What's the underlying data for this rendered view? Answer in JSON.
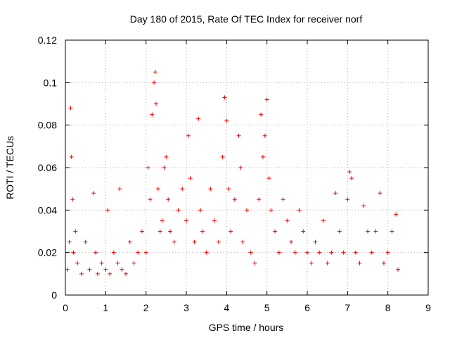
{
  "chart_data": {
    "type": "scatter",
    "title": "Day 180 of 2015, Rate Of TEC Index for receiver norf",
    "xlabel": "GPS time / hours",
    "ylabel": "ROTI / TECUs",
    "xlim": [
      0,
      9
    ],
    "ylim": [
      0,
      0.12
    ],
    "x_ticks": [
      "0",
      "1",
      "2",
      "3",
      "4",
      "5",
      "6",
      "7",
      "8",
      "9"
    ],
    "y_ticks": [
      "0",
      "0.02",
      "0.04",
      "0.06",
      "0.08",
      "0.1",
      "0.12"
    ],
    "x_tick_values": [
      0,
      1,
      2,
      3,
      4,
      5,
      6,
      7,
      8,
      9
    ],
    "y_tick_values": [
      0,
      0.02,
      0.04,
      0.06,
      0.08,
      0.1,
      0.12
    ],
    "grid": true,
    "marker": "+",
    "series_color": "#ff0000",
    "series": [
      {
        "name": "ROTI",
        "x": [
          0.05,
          0.1,
          0.13,
          0.15,
          0.18,
          0.2,
          0.25,
          0.3,
          0.4,
          0.5,
          0.6,
          0.7,
          0.75,
          0.8,
          0.9,
          1.0,
          1.05,
          1.1,
          1.2,
          1.3,
          1.35,
          1.4,
          1.5,
          1.6,
          1.7,
          1.8,
          1.9,
          2.0,
          2.05,
          2.1,
          2.15,
          2.2,
          2.23,
          2.25,
          2.3,
          2.35,
          2.4,
          2.45,
          2.5,
          2.55,
          2.6,
          2.7,
          2.8,
          2.9,
          3.0,
          3.05,
          3.1,
          3.2,
          3.3,
          3.35,
          3.4,
          3.5,
          3.6,
          3.7,
          3.8,
          3.9,
          3.95,
          4.0,
          4.05,
          4.1,
          4.2,
          4.3,
          4.35,
          4.4,
          4.5,
          4.6,
          4.7,
          4.8,
          4.85,
          4.9,
          4.95,
          5.0,
          5.05,
          5.1,
          5.2,
          5.3,
          5.4,
          5.5,
          5.6,
          5.7,
          5.8,
          5.9,
          6.0,
          6.1,
          6.2,
          6.3,
          6.4,
          6.5,
          6.6,
          6.7,
          6.8,
          6.9,
          7.0,
          7.05,
          7.1,
          7.2,
          7.3,
          7.4,
          7.5,
          7.6,
          7.7,
          7.8,
          7.9,
          8.0,
          8.1,
          8.2,
          8.25
        ],
        "y": [
          0.012,
          0.025,
          0.088,
          0.065,
          0.045,
          0.02,
          0.03,
          0.015,
          0.01,
          0.025,
          0.012,
          0.048,
          0.02,
          0.01,
          0.015,
          0.012,
          0.04,
          0.01,
          0.02,
          0.015,
          0.05,
          0.012,
          0.01,
          0.025,
          0.015,
          0.02,
          0.03,
          0.02,
          0.06,
          0.045,
          0.085,
          0.1,
          0.105,
          0.09,
          0.05,
          0.03,
          0.035,
          0.06,
          0.065,
          0.045,
          0.03,
          0.025,
          0.04,
          0.05,
          0.035,
          0.075,
          0.055,
          0.025,
          0.083,
          0.04,
          0.03,
          0.02,
          0.05,
          0.035,
          0.025,
          0.065,
          0.093,
          0.082,
          0.05,
          0.03,
          0.045,
          0.075,
          0.06,
          0.025,
          0.04,
          0.02,
          0.015,
          0.045,
          0.085,
          0.065,
          0.075,
          0.092,
          0.055,
          0.04,
          0.03,
          0.02,
          0.045,
          0.035,
          0.025,
          0.02,
          0.04,
          0.03,
          0.02,
          0.015,
          0.025,
          0.02,
          0.035,
          0.015,
          0.02,
          0.048,
          0.03,
          0.02,
          0.045,
          0.058,
          0.055,
          0.02,
          0.015,
          0.042,
          0.03,
          0.02,
          0.03,
          0.048,
          0.015,
          0.02,
          0.03,
          0.038,
          0.012
        ]
      }
    ]
  }
}
